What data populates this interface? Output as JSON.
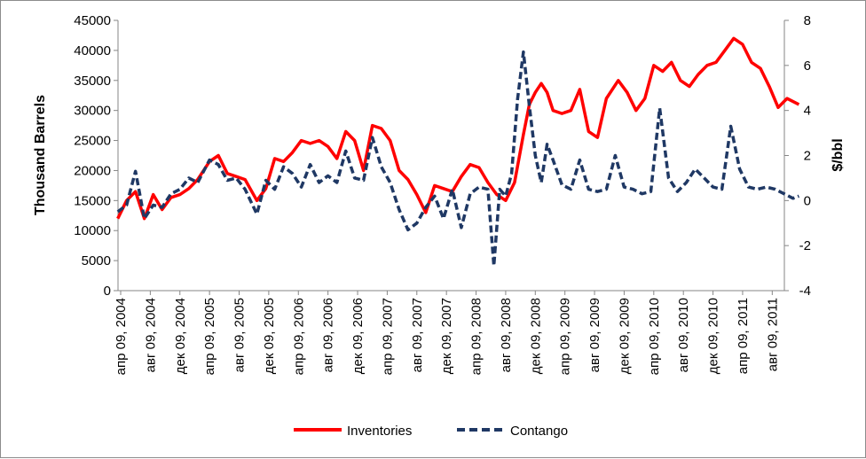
{
  "chart_data": {
    "type": "line",
    "title": "",
    "ylabel_left": "Thousand Barrels",
    "ylabel_right": "$/bbl",
    "y_left": {
      "min": 0,
      "max": 45000,
      "ticks": [
        "0",
        "5000",
        "10000",
        "15000",
        "20000",
        "25000",
        "30000",
        "35000",
        "40000",
        "45000"
      ]
    },
    "y_right": {
      "min": -4,
      "max": 8,
      "ticks": [
        "-4",
        "-2",
        "0",
        "2",
        "4",
        "6",
        "8"
      ]
    },
    "x_tick_labels": [
      "апр 09, 2004",
      "авг 09, 2004",
      "дек 09, 2004",
      "апр 09, 2005",
      "авг 09, 2005",
      "дек 09, 2005",
      "апр 09, 2006",
      "авг 09, 2006",
      "дек 09, 2006",
      "апр 09, 2007",
      "авг 09, 2007",
      "дек 09, 2007",
      "апр 09, 2008",
      "авг 09, 2008",
      "дек 09, 2008",
      "апр 09, 2009",
      "авг 09, 2009",
      "дек 09, 2009",
      "апр 09, 2010",
      "авг 09, 2010",
      "дек 09, 2010",
      "апр 09, 2011",
      "авг 09, 2011"
    ],
    "grid": false,
    "legend_position": "bottom",
    "series": [
      {
        "name": "Inventories",
        "axis": "left",
        "color": "#ff0000",
        "style": "solid",
        "x": [
          -0.1,
          0.2,
          0.5,
          0.8,
          1.1,
          1.4,
          1.7,
          2.0,
          2.3,
          2.6,
          3.0,
          3.3,
          3.6,
          3.9,
          4.2,
          4.6,
          4.9,
          5.2,
          5.5,
          5.8,
          6.1,
          6.4,
          6.7,
          7.0,
          7.3,
          7.6,
          7.9,
          8.2,
          8.5,
          8.8,
          9.1,
          9.4,
          9.7,
          10.0,
          10.3,
          10.6,
          10.9,
          11.2,
          11.5,
          11.8,
          12.1,
          12.4,
          12.7,
          13.0,
          13.3,
          13.6,
          13.8,
          14.0,
          14.2,
          14.4,
          14.6,
          14.9,
          15.2,
          15.5,
          15.8,
          16.1,
          16.4,
          16.8,
          17.1,
          17.4,
          17.7,
          18.0,
          18.3,
          18.6,
          18.9,
          19.2,
          19.5,
          19.8,
          20.1,
          20.4,
          20.7,
          21.0,
          21.3,
          21.6,
          21.9,
          22.2,
          22.5,
          22.9
        ],
        "y": [
          12000,
          15000,
          16500,
          12000,
          16000,
          13500,
          15500,
          16000,
          17000,
          18500,
          21500,
          22500,
          19500,
          19000,
          18500,
          15000,
          17000,
          22000,
          21500,
          23000,
          25000,
          24500,
          25000,
          24000,
          22000,
          26500,
          25000,
          20000,
          27500,
          27000,
          25000,
          20000,
          18500,
          16000,
          13000,
          17500,
          17000,
          16500,
          19000,
          21000,
          20500,
          18000,
          16000,
          15000,
          18000,
          26000,
          31000,
          33000,
          34500,
          33000,
          30000,
          29500,
          30000,
          33500,
          26500,
          25500,
          32000,
          35000,
          33000,
          30000,
          32000,
          37500,
          36500,
          38000,
          35000,
          34000,
          36000,
          37500,
          38000,
          40000,
          42000,
          41000,
          38000,
          37000,
          34000,
          30500,
          32000,
          31000
        ]
      },
      {
        "name": "Contango",
        "axis": "right",
        "color": "#1f3864",
        "style": "dashed",
        "x": [
          -0.1,
          0.2,
          0.5,
          0.8,
          1.1,
          1.4,
          1.7,
          2.0,
          2.3,
          2.6,
          3.0,
          3.3,
          3.6,
          3.9,
          4.2,
          4.6,
          4.9,
          5.2,
          5.5,
          5.8,
          6.1,
          6.4,
          6.7,
          7.0,
          7.3,
          7.6,
          7.9,
          8.2,
          8.5,
          8.8,
          9.1,
          9.4,
          9.7,
          10.0,
          10.3,
          10.6,
          10.9,
          11.2,
          11.5,
          11.8,
          12.1,
          12.4,
          12.6,
          12.8,
          13.0,
          13.2,
          13.4,
          13.6,
          13.8,
          14.0,
          14.2,
          14.4,
          14.6,
          14.9,
          15.2,
          15.5,
          15.8,
          16.1,
          16.4,
          16.7,
          17.0,
          17.3,
          17.6,
          17.9,
          18.2,
          18.5,
          18.8,
          19.1,
          19.4,
          19.7,
          20.0,
          20.3,
          20.6,
          20.9,
          21.2,
          21.5,
          21.8,
          22.1,
          22.4,
          22.7,
          22.9
        ],
        "y": [
          -0.5,
          -0.2,
          1.3,
          -0.8,
          -0.2,
          -0.3,
          0.3,
          0.5,
          1.0,
          0.8,
          1.8,
          1.6,
          0.9,
          1.0,
          0.5,
          -0.6,
          0.9,
          0.5,
          1.5,
          1.2,
          0.6,
          1.6,
          0.8,
          1.1,
          0.8,
          2.2,
          1.0,
          0.9,
          2.8,
          1.5,
          0.8,
          -0.4,
          -1.3,
          -1.0,
          -0.3,
          0.2,
          -0.8,
          0.5,
          -1.2,
          0.3,
          0.6,
          0.5,
          -2.9,
          0.5,
          0.2,
          1.2,
          4.5,
          6.6,
          4.2,
          2.0,
          0.8,
          2.5,
          1.8,
          0.7,
          0.5,
          1.8,
          0.5,
          0.4,
          0.5,
          2.0,
          0.6,
          0.5,
          0.3,
          0.4,
          4.1,
          1.0,
          0.4,
          0.8,
          1.4,
          1.0,
          0.6,
          0.5,
          3.3,
          1.4,
          0.6,
          0.5,
          0.6,
          0.5,
          0.3,
          0.1,
          0.2
        ]
      }
    ]
  }
}
